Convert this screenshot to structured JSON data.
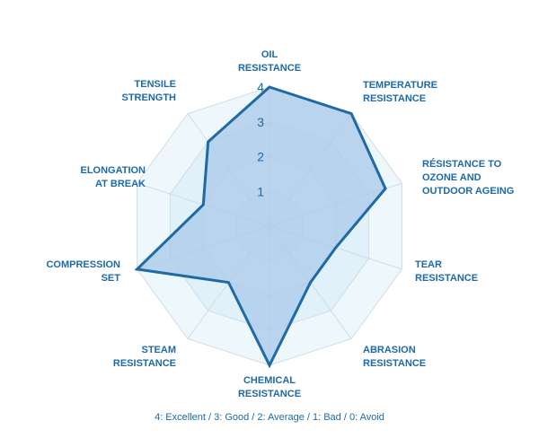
{
  "chart_data": {
    "type": "radar",
    "axes": [
      [
        "OIL",
        "RESISTANCE"
      ],
      [
        "TEMPERATURE",
        "RESISTANCE"
      ],
      [
        "RÉSISTANCE TO",
        "OZONE AND",
        "OUTDOOR AGEING"
      ],
      [
        "TEAR",
        "RESISTANCE"
      ],
      [
        "ABRASION",
        "RESISTANCE"
      ],
      [
        "CHEMICAL",
        "RESISTANCE"
      ],
      [
        "STEAM",
        "RESISTANCE"
      ],
      [
        "COMPRESSION",
        "SET"
      ],
      [
        "ELONGATION",
        "AT BREAK"
      ],
      [
        "TENSILE",
        "STRENGTH"
      ]
    ],
    "values": [
      4,
      4,
      3.5,
      2,
      2,
      4,
      2,
      4,
      2,
      3
    ],
    "rlim": [
      0,
      4
    ],
    "ticks": [
      "1",
      "2",
      "3",
      "4"
    ],
    "grid": true,
    "legend_note": "4: Excellent / 3: Good / 2: Average / 1: Bad / 0: Avoid",
    "colors": {
      "line": "#1d6aa5",
      "fill": "#a9c8ea",
      "band_light": "#eef7fc",
      "band_dark": "#e1f1fa",
      "grid": "#cfdde6",
      "text": "#1d6aa5"
    }
  }
}
